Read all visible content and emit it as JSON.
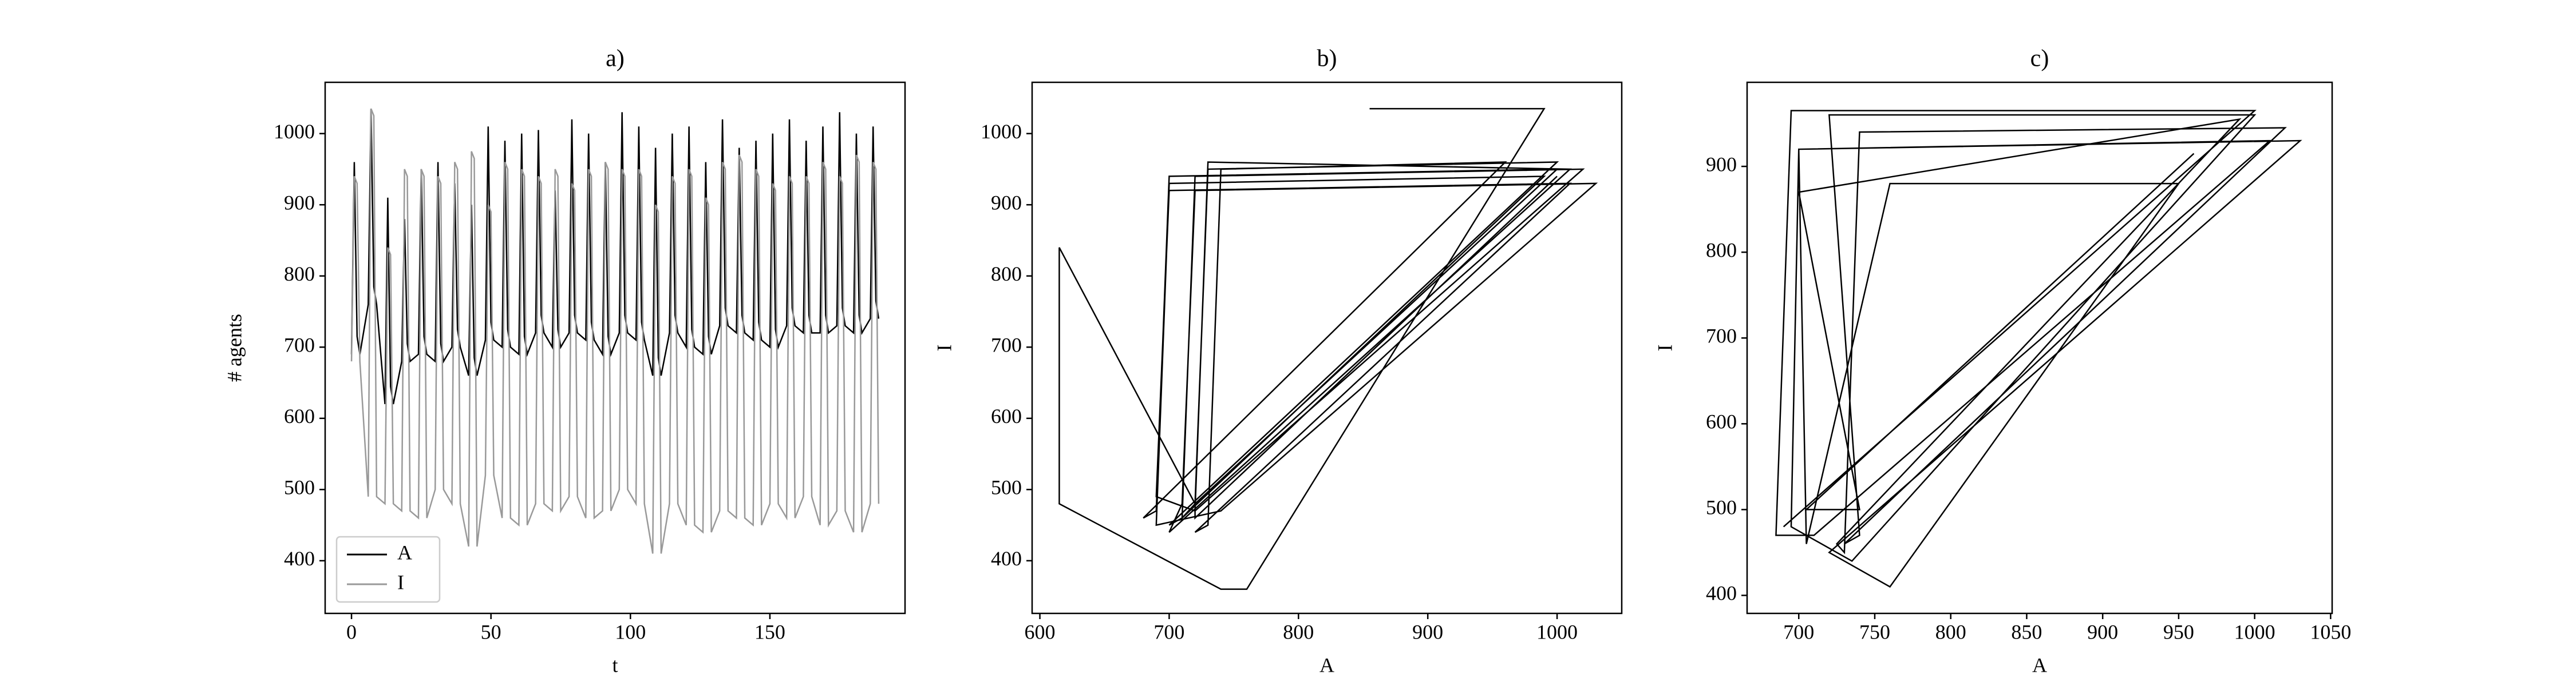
{
  "chart_data": [
    {
      "type": "line",
      "title": "a)",
      "xlabel": "t",
      "ylabel": "# agents",
      "legend": "lower left",
      "xlim": [
        -9.45,
        198.45
      ],
      "ylim": [
        326,
        1072
      ],
      "xticks": [
        0,
        50,
        100,
        150
      ],
      "yticks": [
        400,
        500,
        600,
        700,
        800,
        900,
        1000
      ],
      "x": [
        0,
        1,
        2,
        3,
        6,
        7,
        8,
        9,
        12,
        13,
        14,
        15,
        18,
        19,
        20,
        21,
        24,
        25,
        26,
        27,
        30,
        31,
        32,
        33,
        36,
        37,
        38,
        39,
        42,
        43,
        44,
        45,
        48,
        49,
        50,
        51,
        54,
        55,
        56,
        57,
        60,
        61,
        62,
        63,
        66,
        67,
        68,
        69,
        72,
        73,
        74,
        75,
        78,
        79,
        80,
        81,
        84,
        85,
        86,
        87,
        90,
        91,
        92,
        93,
        96,
        97,
        98,
        99,
        102,
        103,
        104,
        105,
        108,
        109,
        110,
        111,
        114,
        115,
        116,
        117,
        120,
        121,
        122,
        123,
        126,
        127,
        128,
        129,
        132,
        133,
        134,
        135,
        138,
        139,
        140,
        141,
        144,
        145,
        146,
        147,
        150,
        151,
        152,
        153,
        156,
        157,
        158,
        159,
        162,
        163,
        164,
        165,
        168,
        169,
        170,
        171,
        174,
        175,
        176,
        177,
        180,
        181,
        182,
        183,
        186,
        187,
        188,
        189
      ],
      "series": [
        {
          "name": "A",
          "color": "#000000",
          "values": [
            690,
            960,
            715,
            690,
            760,
            1035,
            785,
            760,
            620,
            910,
            645,
            620,
            680,
            880,
            705,
            680,
            690,
            950,
            715,
            690,
            680,
            960,
            705,
            680,
            700,
            930,
            725,
            700,
            660,
            900,
            685,
            660,
            710,
            1010,
            735,
            710,
            700,
            990,
            725,
            700,
            690,
            1000,
            715,
            690,
            720,
            1005,
            745,
            720,
            700,
            920,
            725,
            700,
            720,
            1020,
            745,
            720,
            710,
            1000,
            735,
            710,
            690,
            960,
            715,
            690,
            720,
            1030,
            745,
            720,
            710,
            1010,
            735,
            710,
            660,
            980,
            685,
            660,
            720,
            1000,
            745,
            720,
            700,
            1010,
            725,
            700,
            690,
            960,
            715,
            690,
            730,
            1020,
            755,
            730,
            720,
            980,
            745,
            720,
            710,
            990,
            735,
            710,
            700,
            1000,
            725,
            700,
            730,
            1020,
            755,
            730,
            720,
            990,
            745,
            720,
            720,
            1010,
            745,
            720,
            730,
            1030,
            755,
            730,
            720,
            1000,
            745,
            720,
            740,
            1010,
            765,
            740
          ]
        },
        {
          "name": "I",
          "color": "#999999",
          "values": [
            680,
            940,
            930,
            680,
            490,
            1035,
            1025,
            490,
            480,
            840,
            830,
            480,
            470,
            950,
            940,
            470,
            460,
            950,
            940,
            460,
            500,
            940,
            930,
            500,
            480,
            960,
            950,
            480,
            420,
            975,
            965,
            420,
            520,
            900,
            890,
            520,
            460,
            960,
            950,
            460,
            450,
            950,
            940,
            450,
            480,
            940,
            930,
            480,
            470,
            950,
            940,
            470,
            490,
            930,
            920,
            490,
            460,
            950,
            940,
            460,
            470,
            960,
            950,
            470,
            500,
            950,
            940,
            500,
            480,
            950,
            940,
            480,
            410,
            900,
            890,
            410,
            480,
            940,
            930,
            480,
            450,
            950,
            940,
            450,
            440,
            910,
            900,
            440,
            470,
            960,
            950,
            470,
            460,
            970,
            960,
            460,
            450,
            950,
            940,
            450,
            480,
            930,
            920,
            480,
            460,
            940,
            930,
            460,
            490,
            940,
            930,
            490,
            450,
            960,
            950,
            450,
            470,
            940,
            930,
            470,
            440,
            970,
            960,
            440,
            480,
            960,
            950,
            480
          ]
        }
      ]
    },
    {
      "type": "line",
      "title": "b)",
      "xlabel": "A",
      "ylabel": "I",
      "color": "#000000",
      "xlim": [
        594,
        1050
      ],
      "ylim": [
        326,
        1072
      ],
      "xticks": [
        600,
        700,
        800,
        900,
        1000
      ],
      "yticks": [
        400,
        500,
        600,
        700,
        800,
        900,
        1000
      ],
      "x": [
        855,
        990,
        760,
        740,
        615,
        615,
        720,
        1000,
        700,
        690,
        680,
        960,
        740,
        730,
        720,
        1010,
        700,
        690,
        720,
        1020,
        720,
        710,
        700,
        1000,
        730,
        720,
        710,
        990,
        700,
        690,
        740,
        1030,
        720,
        710,
        700,
        1010,
        730,
        720,
        720,
        1000
      ],
      "values": [
        1035,
        1035,
        360,
        360,
        480,
        840,
        480,
        950,
        940,
        470,
        460,
        960,
        950,
        450,
        440,
        930,
        920,
        490,
        470,
        950,
        940,
        460,
        450,
        960,
        950,
        480,
        460,
        940,
        930,
        450,
        470,
        930,
        920,
        480,
        440,
        950,
        960,
        470,
        460,
        940
      ]
    },
    {
      "type": "line",
      "title": "c)",
      "xlabel": "A",
      "ylabel": "I",
      "color": "#000000",
      "xlim": [
        666,
        1051
      ],
      "ylim": [
        379,
        998
      ],
      "xticks": [
        700,
        750,
        800,
        850,
        900,
        950,
        1000,
        1050
      ],
      "yticks": [
        400,
        500,
        600,
        700,
        800,
        900
      ],
      "x": [
        690,
        1000,
        695,
        685,
        710,
        1010,
        700,
        705,
        760,
        950,
        760,
        760,
        720,
        1030,
        700,
        695,
        735,
        1000,
        720,
        740,
        730,
        1020,
        740,
        730,
        725,
        990,
        700,
        740,
        705,
        960
      ],
      "values": [
        480,
        965,
        965,
        470,
        470,
        930,
        920,
        460,
        880,
        880,
        410,
        410,
        450,
        930,
        920,
        480,
        440,
        960,
        960,
        470,
        460,
        945,
        940,
        450,
        460,
        955,
        870,
        500,
        500,
        915
      ]
    }
  ]
}
